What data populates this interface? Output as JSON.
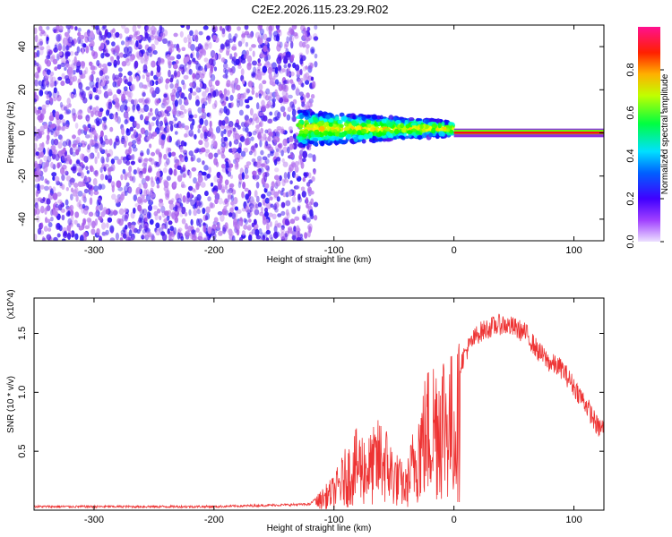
{
  "chart_data": [
    {
      "type": "heatmap",
      "title": "C2E2.2026.115.23.29.R02",
      "xlabel": "Height of straight line (km)",
      "ylabel": "Frequency (Hz)",
      "xlim": [
        -350,
        125
      ],
      "ylim": [
        -50,
        50
      ],
      "xticks": [
        -300,
        -200,
        -100,
        0,
        100
      ],
      "yticks": [
        40,
        20,
        0,
        -20,
        -40
      ],
      "colorbar": {
        "label": "Normalized spectral amplitude",
        "range": [
          0,
          1
        ],
        "ticks": [
          0.0,
          0.2,
          0.4,
          0.6,
          0.8
        ],
        "colormap": [
          "#e6ccff",
          "#8a2be2",
          "#0000ff",
          "#00ffff",
          "#00ff00",
          "#ffff00",
          "#ff8800",
          "#ff0000",
          "#ff1493"
        ]
      },
      "regions": [
        {
          "x_range": [
            -350,
            -115
          ],
          "freq_range": [
            -50,
            50
          ],
          "amplitude": 0.15,
          "pattern": "scattered noise"
        },
        {
          "x_range": [
            -130,
            0
          ],
          "freq_center": 2,
          "freq_halfwidth": 8,
          "amplitude": 0.5
        },
        {
          "x_range": [
            0,
            125
          ],
          "freq_center": 0,
          "freq_halfwidth": 2,
          "amplitude": 0.9
        }
      ]
    },
    {
      "type": "line",
      "xlabel": "Height of straight line (km)",
      "ylabel": "SNR (10 * v/v)",
      "y_multiplier": "(x10^4)",
      "xlim": [
        -350,
        125
      ],
      "ylim": [
        0,
        1.8
      ],
      "xticks": [
        -300,
        -200,
        -100,
        0,
        100
      ],
      "yticks": [
        0.5,
        1.0,
        1.5
      ],
      "ytick_labels": [
        "0.5",
        "1.0",
        "1.5"
      ],
      "series_color": "#ee3333",
      "x": [
        -350,
        -300,
        -200,
        -120,
        -100,
        -90,
        -80,
        -70,
        -60,
        -50,
        -40,
        -30,
        -20,
        -10,
        0,
        10,
        20,
        30,
        40,
        50,
        60,
        70,
        80,
        90,
        100,
        110,
        120,
        125
      ],
      "y": [
        0.03,
        0.03,
        0.03,
        0.05,
        0.25,
        0.45,
        0.6,
        0.55,
        0.7,
        0.45,
        0.3,
        0.8,
        1.1,
        1.25,
        1.1,
        1.35,
        1.5,
        1.55,
        1.58,
        1.55,
        1.5,
        1.35,
        1.25,
        1.2,
        1.05,
        0.9,
        0.7,
        0.7
      ]
    }
  ]
}
